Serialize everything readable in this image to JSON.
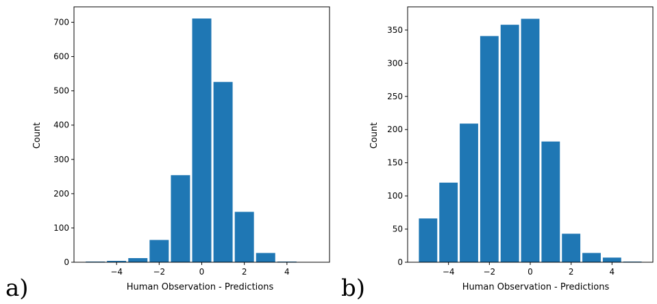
{
  "chart_data": [
    {
      "type": "bar",
      "panel_label": "a)",
      "xlabel": "Human Observation - Predictions",
      "ylabel": "Count",
      "x": [
        -5,
        -4,
        -3,
        -2,
        -1,
        0,
        1,
        2,
        3,
        4,
        5
      ],
      "values": [
        2,
        4,
        12,
        65,
        254,
        711,
        526,
        147,
        27,
        2,
        0
      ],
      "xlim": [
        -6,
        6
      ],
      "ylim": [
        0,
        745
      ],
      "xticks": [
        -4,
        -2,
        0,
        2,
        4
      ],
      "xtick_labels": [
        "−4",
        "−2",
        "0",
        "2",
        "4"
      ],
      "yticks": [
        0,
        100,
        200,
        300,
        400,
        500,
        600,
        700
      ],
      "ytick_labels": [
        "0",
        "100",
        "200",
        "300",
        "400",
        "500",
        "600",
        "700"
      ],
      "bar_color": "#1f77b4",
      "grid": false
    },
    {
      "type": "bar",
      "panel_label": "b)",
      "xlabel": "Human Observation - Predictions",
      "ylabel": "Count",
      "x": [
        -5,
        -4,
        -3,
        -2,
        -1,
        0,
        1,
        2,
        3,
        4,
        5
      ],
      "values": [
        66,
        120,
        209,
        341,
        358,
        367,
        182,
        43,
        14,
        7,
        1
      ],
      "xlim": [
        -6,
        6
      ],
      "ylim": [
        0,
        385
      ],
      "xticks": [
        -4,
        -2,
        0,
        2,
        4
      ],
      "xtick_labels": [
        "−4",
        "−2",
        "0",
        "2",
        "4"
      ],
      "yticks": [
        0,
        50,
        100,
        150,
        200,
        250,
        300,
        350
      ],
      "ytick_labels": [
        "0",
        "50",
        "100",
        "150",
        "200",
        "250",
        "300",
        "350"
      ],
      "bar_color": "#1f77b4",
      "grid": false
    }
  ]
}
